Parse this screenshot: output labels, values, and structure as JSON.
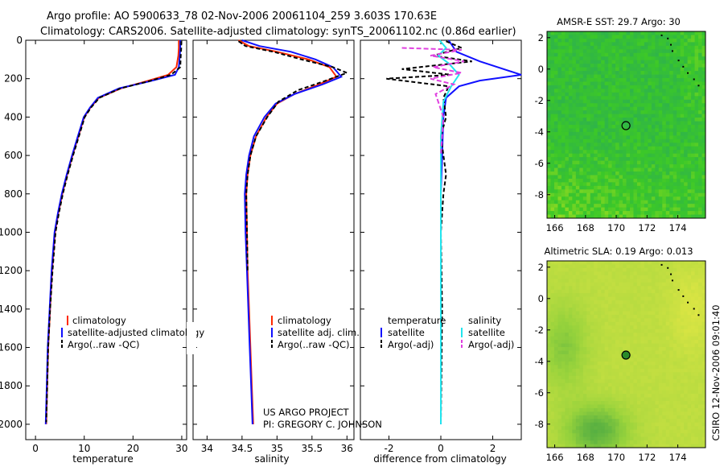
{
  "title": {
    "line1": "Argo profile: AO 5900633_78 02-Nov-2006 20061104_259 3.603S 170.63E",
    "line2": "Climatology: CARS2006. Satellite-adjusted climatology: synTS_20061102.nc (0.86d earlier)"
  },
  "credit": {
    "project": "US ARGO PROJECT",
    "pi": "PI: GREGORY C. JOHNSON"
  },
  "stamp": "CSIRO 12-Nov-2006 09:01:40",
  "colors": {
    "climatology": "#ff2a00",
    "satellite": "#1010ff",
    "argo": "#000000",
    "satellite_diff_sal": "#22e5ee",
    "argo_diff_sal": "#e040e0"
  },
  "chart_data": [
    {
      "type": "line",
      "id": "temperature",
      "xlabel": "temperature",
      "xlim": [
        -2,
        31
      ],
      "ylim": [
        2080,
        0
      ],
      "xticks": [
        0,
        10,
        20,
        30
      ],
      "yticks": [
        0,
        200,
        400,
        600,
        800,
        1000,
        1200,
        1400,
        1600,
        1800,
        2000
      ],
      "series": [
        {
          "name": "climatology",
          "color": "#ff2a00",
          "dash": "",
          "x": [
            29.4,
            29.4,
            29.3,
            28.9,
            27.2,
            22.5,
            17.6,
            13.0,
            11.3,
            10.0,
            8.8,
            7.6,
            6.5,
            5.5,
            4.7,
            4.0,
            3.4,
            3.0,
            2.6,
            2.4,
            2.2
          ],
          "y": [
            0,
            40,
            80,
            140,
            180,
            215,
            250,
            300,
            350,
            400,
            500,
            600,
            700,
            800,
            900,
            1000,
            1200,
            1400,
            1600,
            1800,
            2000
          ]
        },
        {
          "name": "satellite-adjusted climatology",
          "color": "#1010ff",
          "dash": "",
          "x": [
            29.7,
            29.7,
            29.6,
            29.4,
            28.6,
            23.2,
            17.2,
            12.8,
            11.2,
            9.9,
            8.7,
            7.5,
            6.4,
            5.4,
            4.6,
            3.9,
            3.3,
            2.9,
            2.5,
            2.3,
            2.1
          ],
          "y": [
            0,
            40,
            80,
            140,
            180,
            215,
            250,
            300,
            350,
            400,
            500,
            600,
            700,
            800,
            900,
            1000,
            1200,
            1400,
            1600,
            1800,
            2000
          ]
        },
        {
          "name": "Argo(..raw -QC)",
          "color": "#000000",
          "dash": "5,3",
          "x": [
            29.9,
            29.9,
            29.8,
            29.7,
            27.8,
            23.0,
            17.5,
            13.1,
            11.4,
            10.1,
            8.9,
            7.7,
            6.6,
            5.6,
            4.8,
            4.1,
            3.5,
            3.0,
            2.6,
            2.4,
            2.2
          ],
          "y": [
            5,
            40,
            80,
            140,
            180,
            215,
            250,
            300,
            350,
            400,
            500,
            600,
            700,
            800,
            900,
            1000,
            1200,
            1400,
            1600,
            1800,
            1990
          ]
        }
      ],
      "legend": [
        "climatology",
        "satellite-adjusted climatology",
        "Argo(..raw -QC)"
      ]
    },
    {
      "type": "line",
      "id": "salinity",
      "xlabel": "salinity",
      "xlim": [
        33.8,
        36.1
      ],
      "ylim": [
        2080,
        0
      ],
      "xticks": [
        34,
        34.5,
        35,
        35.5,
        36
      ],
      "series": [
        {
          "name": "climatology",
          "color": "#ff2a00",
          "dash": "",
          "x": [
            34.45,
            34.6,
            35.0,
            35.45,
            35.75,
            35.85,
            35.6,
            35.25,
            35.0,
            34.85,
            34.7,
            34.62,
            34.58,
            34.56,
            34.57,
            34.58,
            34.6,
            34.62,
            34.64,
            34.66
          ],
          "y": [
            0,
            30,
            60,
            100,
            140,
            190,
            230,
            280,
            330,
            400,
            500,
            600,
            700,
            800,
            1000,
            1200,
            1400,
            1600,
            1800,
            2000
          ]
        },
        {
          "name": "satellite adj. clim.",
          "color": "#1010ff",
          "dash": "",
          "x": [
            34.5,
            34.75,
            35.2,
            35.55,
            35.8,
            35.92,
            35.65,
            35.25,
            34.98,
            34.82,
            34.67,
            34.6,
            34.56,
            34.54,
            34.55,
            34.57,
            34.59,
            34.61,
            34.63,
            34.65
          ],
          "y": [
            0,
            30,
            60,
            100,
            140,
            190,
            230,
            280,
            330,
            400,
            500,
            600,
            700,
            800,
            1000,
            1200,
            1400,
            1600,
            1800,
            2000
          ]
        },
        {
          "name": "Argo(..raw -QC)",
          "color": "#000000",
          "dash": "5,3",
          "x": [
            34.45,
            34.55,
            34.95,
            35.35,
            35.8,
            36.0,
            35.7,
            35.3,
            35.02,
            34.86,
            34.7,
            34.62,
            34.58,
            34.56,
            34.57,
            34.58
          ],
          "y": [
            5,
            30,
            60,
            100,
            140,
            170,
            210,
            260,
            320,
            400,
            500,
            600,
            700,
            800,
            1000,
            1200
          ]
        }
      ],
      "legend": [
        "climatology",
        "satellite adj. clim.",
        "Argo(..raw -QC)"
      ]
    },
    {
      "type": "line",
      "id": "difference",
      "xlabel": "difference from climatology",
      "xlim": [
        -3.1,
        3.1
      ],
      "ylim": [
        2080,
        0
      ],
      "xticks": [
        -2,
        0,
        2
      ],
      "series": [
        {
          "name": "satellite (temperature)",
          "color": "#1010ff",
          "dash": "",
          "x": [
            0.3,
            0.6,
            1.5,
            3.2,
            1.5,
            0.7,
            0.2,
            0.1,
            0.05,
            0.0,
            0.0,
            0.0,
            0.0,
            0.0
          ],
          "y": [
            0,
            60,
            110,
            180,
            210,
            240,
            300,
            400,
            600,
            800,
            1000,
            1400,
            1800,
            2000
          ]
        },
        {
          "name": "Argo(-adj) (temperature)",
          "color": "#000000",
          "dash": "5,3",
          "x": [
            0.2,
            0.8,
            -0.3,
            1.2,
            -1.5,
            0.4,
            -2.1,
            0.3,
            0.1,
            0.2,
            0.0,
            0.2,
            0.1,
            0.0,
            0.05,
            0.0
          ],
          "y": [
            5,
            40,
            80,
            110,
            150,
            180,
            200,
            240,
            300,
            400,
            500,
            700,
            800,
            1000,
            1400,
            1990
          ]
        },
        {
          "name": "satellite (salinity)",
          "color": "#22e5ee",
          "dash": "",
          "x": [
            -0.05,
            0.2,
            -0.1,
            0.3,
            0.7,
            0.4,
            0.1,
            0.0,
            0.0,
            0.0,
            0.0,
            0.0
          ],
          "y": [
            0,
            40,
            80,
            120,
            180,
            240,
            320,
            500,
            800,
            1200,
            1600,
            2000
          ]
        },
        {
          "name": "Argo(-adj) (salinity)",
          "color": "#e040e0",
          "dash": "6,3",
          "x": [
            -1.5,
            0.8,
            -0.4,
            0.9,
            -0.3,
            0.8,
            -0.4,
            0.5,
            -0.2,
            0.1,
            0.0
          ],
          "y": [
            40,
            50,
            80,
            110,
            140,
            170,
            200,
            230,
            280,
            400,
            600
          ]
        }
      ],
      "legend_headers": [
        "temperature",
        "salinity"
      ],
      "legend": [
        "satellite",
        "Argo(-adj)",
        "satellite",
        "Argo(-adj)"
      ]
    },
    {
      "type": "heatmap",
      "id": "sst-map",
      "title": "AMSR-E SST: 29.7 Argo: 30",
      "xlim": [
        165.5,
        175.8
      ],
      "ylim": [
        -9.5,
        2.4
      ],
      "xticks": [
        166,
        168,
        170,
        172,
        174
      ],
      "yticks": [
        2,
        0,
        -2,
        -4,
        -6,
        -8
      ],
      "argo_position": [
        170.63,
        -3.603
      ],
      "argo_value": 30
    },
    {
      "type": "heatmap",
      "id": "sla-map",
      "title": "Altimetric SLA: 0.19 Argo: 0.013",
      "xlim": [
        165.5,
        175.8
      ],
      "ylim": [
        -9.5,
        2.4
      ],
      "xticks": [
        166,
        168,
        170,
        172,
        174
      ],
      "yticks": [
        2,
        0,
        -2,
        -4,
        -6,
        -8
      ],
      "argo_position": [
        170.63,
        -3.603
      ],
      "argo_value": 0.013
    }
  ]
}
